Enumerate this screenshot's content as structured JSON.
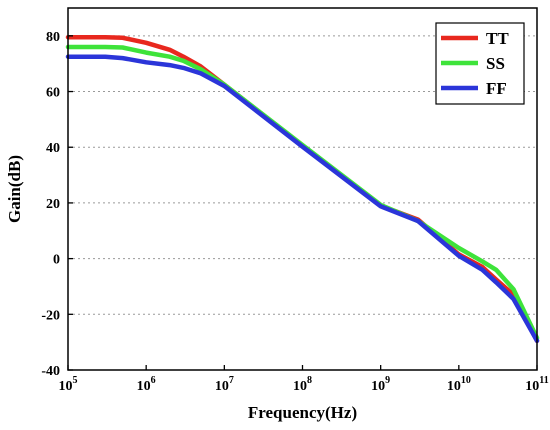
{
  "chart_data": {
    "type": "line",
    "xlabel": "Frequency(Hz)",
    "ylabel": "Gain(dB)",
    "x_scale": "log",
    "xlim": [
      100000,
      100000000000
    ],
    "ylim": [
      -40,
      90
    ],
    "x_ticks": [
      {
        "value": 100000,
        "base": "10",
        "exp": "5"
      },
      {
        "value": 1000000,
        "base": "10",
        "exp": "6"
      },
      {
        "value": 10000000,
        "base": "10",
        "exp": "7"
      },
      {
        "value": 100000000,
        "base": "10",
        "exp": "8"
      },
      {
        "value": 1000000000,
        "base": "10",
        "exp": "9"
      },
      {
        "value": 10000000000,
        "base": "10",
        "exp": "10"
      },
      {
        "value": 100000000000,
        "base": "10",
        "exp": "11"
      }
    ],
    "y_ticks": [
      {
        "value": -40,
        "label": "-40"
      },
      {
        "value": -20,
        "label": "-20"
      },
      {
        "value": 0,
        "label": "0"
      },
      {
        "value": 20,
        "label": "20"
      },
      {
        "value": 40,
        "label": "40"
      },
      {
        "value": 60,
        "label": "60"
      },
      {
        "value": 80,
        "label": "80"
      }
    ],
    "grid": "horizontal dotted",
    "legend_position": "top-right",
    "series": [
      {
        "name": "TT",
        "color": "#e8281e",
        "points": [
          [
            100000,
            79.5
          ],
          [
            300000,
            79.5
          ],
          [
            500000,
            79.3
          ],
          [
            1000000,
            77.5
          ],
          [
            2000000,
            75
          ],
          [
            3000000,
            72.5
          ],
          [
            5000000,
            69
          ],
          [
            10000000,
            62.5
          ],
          [
            100000000,
            40.5
          ],
          [
            1000000000,
            19
          ],
          [
            3000000000,
            14
          ],
          [
            10000000000,
            1.5
          ],
          [
            20000000000,
            -3
          ],
          [
            30000000000,
            -7.5
          ],
          [
            50000000000,
            -13
          ],
          [
            100000000000,
            -29.5
          ]
        ]
      },
      {
        "name": "SS",
        "color": "#3ee33a",
        "points": [
          [
            100000,
            76
          ],
          [
            300000,
            76
          ],
          [
            500000,
            75.8
          ],
          [
            1000000,
            74
          ],
          [
            2000000,
            72.5
          ],
          [
            3000000,
            71
          ],
          [
            5000000,
            68
          ],
          [
            10000000,
            62.5
          ],
          [
            100000000,
            40.8
          ],
          [
            1000000000,
            19.3
          ],
          [
            3000000000,
            13.5
          ],
          [
            10000000000,
            3.8
          ],
          [
            20000000000,
            -1
          ],
          [
            30000000000,
            -4
          ],
          [
            50000000000,
            -11
          ],
          [
            100000000000,
            -28.5
          ]
        ]
      },
      {
        "name": "FF",
        "color": "#2b35d9",
        "points": [
          [
            100000,
            72.5
          ],
          [
            300000,
            72.5
          ],
          [
            500000,
            72
          ],
          [
            1000000,
            70.5
          ],
          [
            2000000,
            69.5
          ],
          [
            3000000,
            68.5
          ],
          [
            5000000,
            66.5
          ],
          [
            10000000,
            62
          ],
          [
            100000000,
            40.2
          ],
          [
            1000000000,
            18.8
          ],
          [
            3000000000,
            13.5
          ],
          [
            10000000000,
            1
          ],
          [
            20000000000,
            -4
          ],
          [
            30000000000,
            -8.5
          ],
          [
            50000000000,
            -14.5
          ],
          [
            100000000000,
            -29.5
          ]
        ]
      }
    ]
  }
}
